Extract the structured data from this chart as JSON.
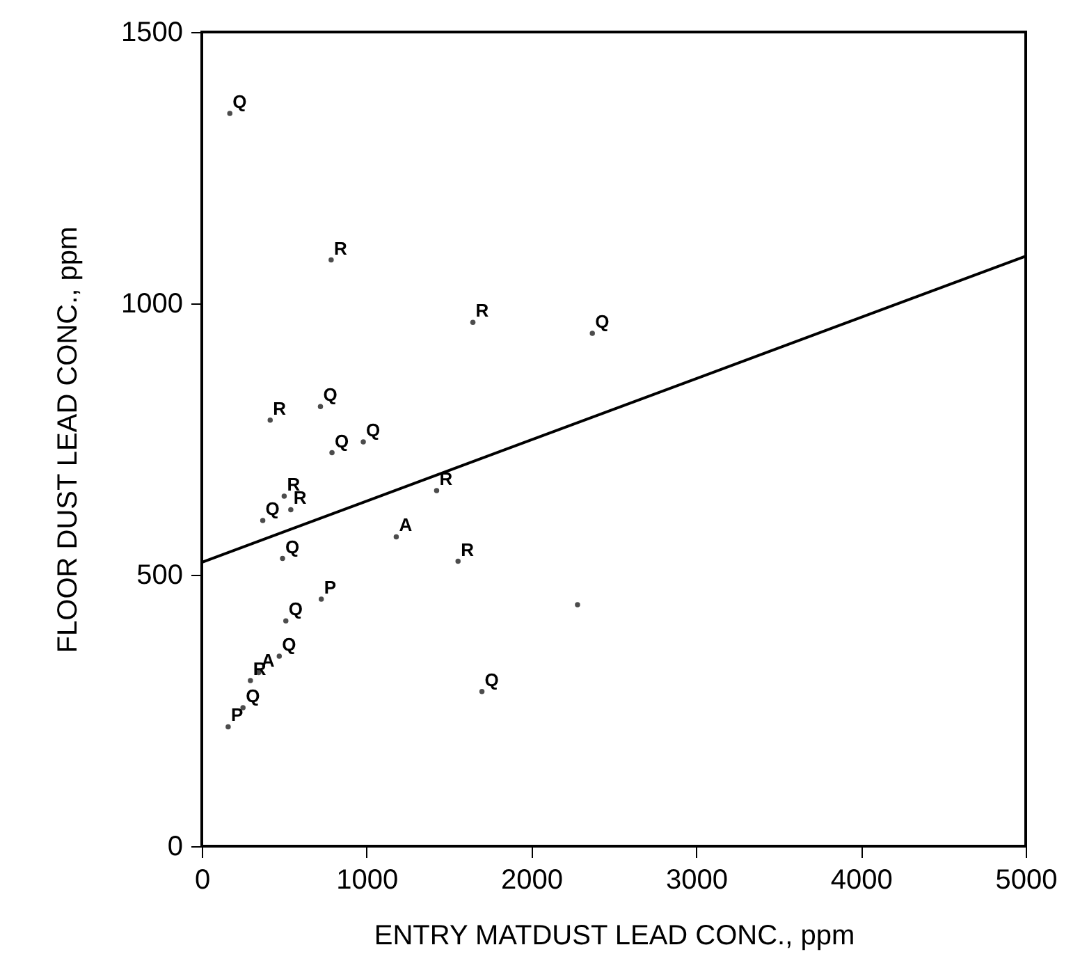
{
  "chart_data": {
    "type": "scatter",
    "xlabel": "ENTRY MATDUST LEAD CONC., ppm",
    "ylabel": "FLOOR DUST LEAD CONC., ppm",
    "xlim": [
      0,
      5000
    ],
    "xticks": [
      0,
      1000,
      2000,
      3000,
      4000,
      5000
    ],
    "ylim": [
      0,
      1500
    ],
    "yticks": [
      0,
      500,
      1000,
      1500
    ],
    "grid": false,
    "series": [
      {
        "name": "Q",
        "color": "#000000",
        "x": [
          170,
          2370,
          720,
          790,
          980,
          370,
          490,
          510,
          470,
          250,
          1700
        ],
        "values": [
          1350,
          945,
          810,
          725,
          745,
          600,
          530,
          415,
          350,
          255,
          285
        ]
      },
      {
        "name": "R",
        "color": "#000000",
        "x": [
          785,
          1645,
          415,
          1425,
          500,
          540,
          1555,
          295
        ],
        "values": [
          1080,
          965,
          785,
          655,
          645,
          620,
          525,
          305
        ]
      },
      {
        "name": "A",
        "color": "#000000",
        "x": [
          1180,
          345
        ],
        "values": [
          570,
          320
        ]
      },
      {
        "name": "P",
        "color": "#000000",
        "x": [
          725,
          160
        ],
        "values": [
          455,
          220
        ]
      },
      {
        "color": "#000000",
        "x": [
          2280
        ],
        "values": [
          445
        ],
        "marker": "circle"
      },
      {
        "type": "line",
        "color": "#000000",
        "x": [
          0,
          5000
        ],
        "values": [
          523,
          1087
        ],
        "line_style": "solid"
      }
    ]
  }
}
